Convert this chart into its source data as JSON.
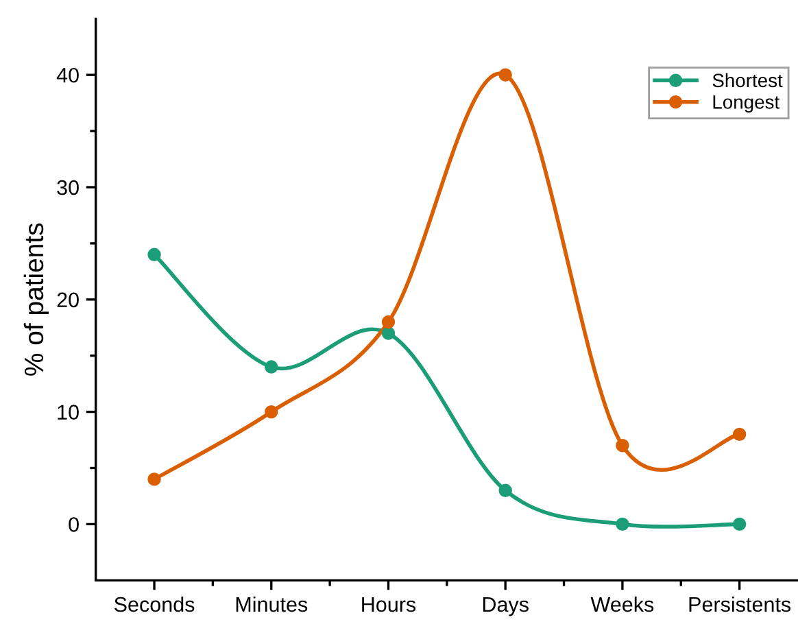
{
  "chart_data": {
    "type": "line",
    "ylabel": "% of patients",
    "categories": [
      "Seconds",
      "Minutes",
      "Hours",
      "Days",
      "Weeks",
      "Persistents"
    ],
    "series": [
      {
        "name": "Shortest",
        "color": "#1b9e77",
        "values": [
          24,
          14,
          17,
          3,
          0,
          0
        ]
      },
      {
        "name": "Longest",
        "color": "#d95f02",
        "values": [
          4,
          10,
          18,
          40,
          7,
          8
        ]
      }
    ],
    "ylim": [
      -5,
      45
    ],
    "yticks": [
      0,
      10,
      20,
      30,
      40
    ],
    "grid": false,
    "legend": "top right",
    "marker": "circle",
    "line_style": "solid"
  }
}
